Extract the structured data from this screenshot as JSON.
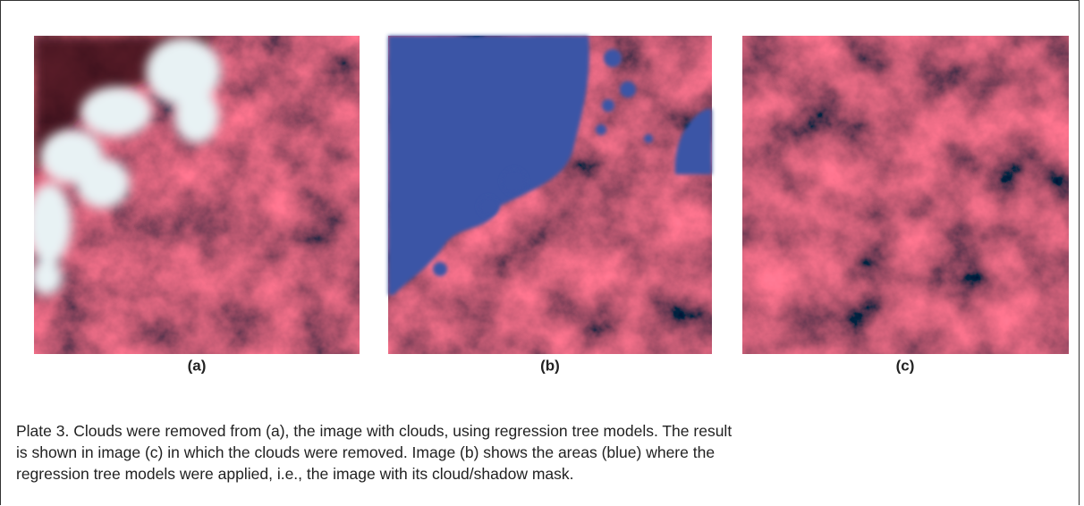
{
  "figure": {
    "panels": [
      {
        "label": "(a)"
      },
      {
        "label": "(b)"
      },
      {
        "label": "(c)"
      }
    ],
    "caption": {
      "lines": [
        "Plate 3. Clouds were removed from (a), the image with clouds, using regression tree models. The result",
        "is shown in image (c) in which the clouds were removed. Image (b) shows the areas (blue) where the",
        "regression tree models were applied, i.e., the image with its cloud/shadow mask."
      ]
    }
  }
}
